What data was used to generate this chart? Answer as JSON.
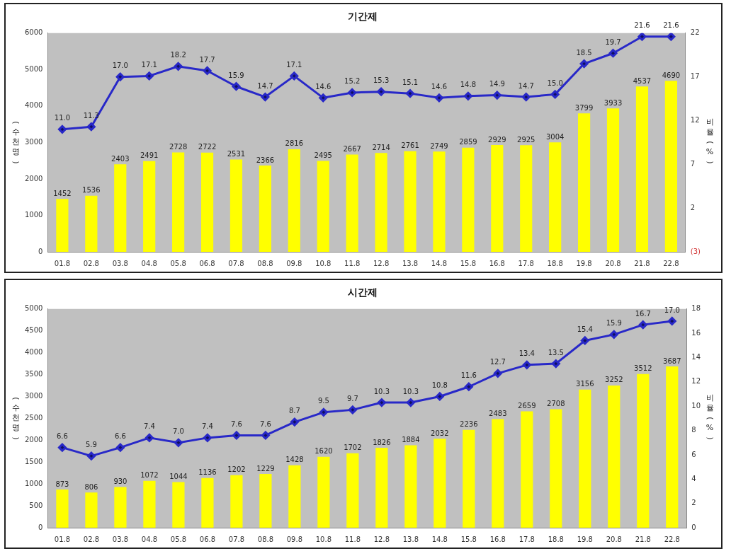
{
  "chart_data": [
    {
      "type": "bar",
      "title": "기간제",
      "ylabel": "(수천명)",
      "y2label": "비율(%)",
      "categories": [
        "01.8",
        "02.8",
        "03.8",
        "04.8",
        "05.8",
        "06.8",
        "07.8",
        "08.8",
        "09.8",
        "10.8",
        "11.8",
        "12.8",
        "13.8",
        "14.8",
        "15.8",
        "16.8",
        "17.8",
        "18.8",
        "19.8",
        "20.8",
        "21.8",
        "22.8"
      ],
      "series": [
        {
          "color": "#ffff00",
          "values": [
            1452,
            1536,
            2403,
            2491,
            2728,
            2722,
            2531,
            2366,
            2816,
            2495,
            2667,
            2714,
            2761,
            2749,
            2859,
            2929,
            2925,
            3004,
            3799,
            3933,
            4537,
            4690
          ]
        },
        {
          "type": "line",
          "axis": "y2",
          "color": "#2828c8",
          "values": [
            11.0,
            11.3,
            17.0,
            17.1,
            18.2,
            17.7,
            15.9,
            14.7,
            17.1,
            14.6,
            15.2,
            15.3,
            15.1,
            14.6,
            14.8,
            14.9,
            14.7,
            15.0,
            18.5,
            19.7,
            21.6,
            21.6
          ],
          "value_labels": [
            "11.0",
            "11.3",
            "17.0",
            "17.1",
            "18.2",
            "17.7",
            "15.9",
            "14.7",
            "17.1",
            "14.6",
            "15.2",
            "15.3",
            "15.1",
            "14.6",
            "14.8",
            "14.9",
            "14.7",
            "15.0",
            "18.5",
            "19.7",
            "21.6",
            "21.6"
          ]
        }
      ],
      "ylim": [
        0,
        6000
      ],
      "yticks": [
        0,
        1000,
        2000,
        3000,
        4000,
        5000,
        6000
      ],
      "y2lim": [
        -3,
        22
      ],
      "y2ticks": [
        {
          "value": -3,
          "label": "(3)"
        },
        2,
        7,
        12,
        17,
        22
      ],
      "data_labels": true,
      "marker": "diamond",
      "legend": false
    },
    {
      "type": "bar",
      "title": "시간제",
      "ylabel": "(수천명)",
      "y2label": "비율(%)",
      "categories": [
        "01.8",
        "02.8",
        "03.8",
        "04.8",
        "05.8",
        "06.8",
        "07.8",
        "08.8",
        "09.8",
        "10.8",
        "11.8",
        "12.8",
        "13.8",
        "14.8",
        "15.8",
        "16.8",
        "17.8",
        "18.8",
        "19.8",
        "20.8",
        "21.8",
        "22.8"
      ],
      "series": [
        {
          "color": "#ffff00",
          "values": [
            873,
            806,
            930,
            1072,
            1044,
            1136,
            1202,
            1229,
            1428,
            1620,
            1702,
            1826,
            1884,
            2032,
            2236,
            2483,
            2659,
            2708,
            3156,
            3252,
            3512,
            3687
          ]
        },
        {
          "type": "line",
          "axis": "y2",
          "color": "#2828c8",
          "values": [
            6.6,
            5.9,
            6.6,
            7.4,
            7.0,
            7.4,
            7.6,
            7.6,
            8.7,
            9.5,
            9.7,
            10.3,
            10.3,
            10.8,
            11.6,
            12.7,
            13.4,
            13.5,
            15.4,
            15.9,
            16.7,
            17.0
          ],
          "value_labels": [
            "6.6",
            "5.9",
            "6.6",
            "7.4",
            "7.0",
            "7.4",
            "7.6",
            "7.6",
            "8.7",
            "9.5",
            "9.7",
            "10.3",
            "10.3",
            "10.8",
            "11.6",
            "12.7",
            "13.4",
            "13.5",
            "15.4",
            "15.9",
            "16.7",
            "17.0"
          ]
        }
      ],
      "ylim": [
        0,
        5000
      ],
      "yticks": [
        0,
        500,
        1000,
        1500,
        2000,
        2500,
        3000,
        3500,
        4000,
        4500,
        5000
      ],
      "y2lim": [
        0,
        18
      ],
      "y2ticks": [
        0,
        2,
        4,
        6,
        8,
        10,
        12,
        14,
        16,
        18
      ],
      "data_labels": true,
      "marker": "diamond",
      "legend": false
    }
  ]
}
